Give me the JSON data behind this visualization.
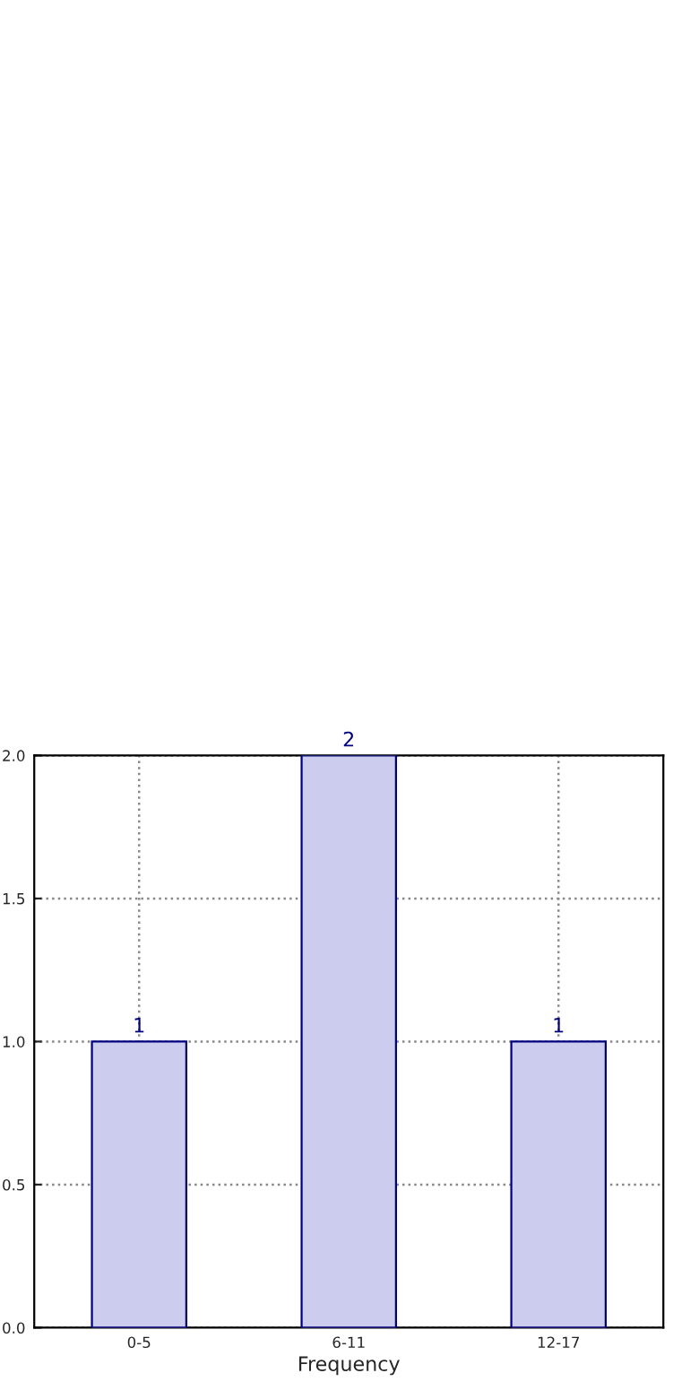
{
  "chart_data": {
    "type": "bar",
    "xlabel": "Frequency",
    "categories": [
      "0-5",
      "6-11",
      "12-17"
    ],
    "series": [
      {
        "color": "#ccccee",
        "values": [
          1,
          2,
          1
        ]
      }
    ],
    "ylim": [
      0,
      2
    ],
    "yticks": [
      {
        "value": 0,
        "label": "0.0"
      },
      {
        "value": 0.5,
        "label": "0.5"
      },
      {
        "value": 1,
        "label": "1.0"
      },
      {
        "value": 1.5,
        "label": "1.5"
      },
      {
        "value": 2,
        "label": "2.0"
      }
    ],
    "grid": true,
    "data_labels": true
  }
}
